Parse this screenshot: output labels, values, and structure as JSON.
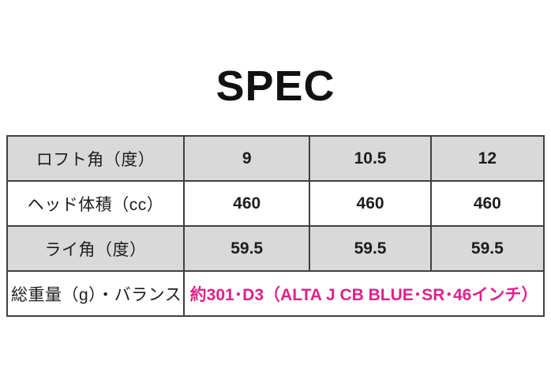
{
  "page": {
    "title": "SPEC"
  },
  "colors": {
    "accent_pink": "#e0218a",
    "row_gray": "#d9d9d9",
    "border": "#404040",
    "text": "#1d1d1d"
  },
  "table": {
    "columns": [
      "label",
      "value1",
      "value2",
      "value3"
    ],
    "rows": [
      {
        "label": "ロフト角（度）",
        "values": [
          "9",
          "10.5",
          "12"
        ],
        "shaded": true
      },
      {
        "label": "ヘッド体積（cc）",
        "values": [
          "460",
          "460",
          "460"
        ],
        "shaded": false
      },
      {
        "label": "ライ角（度）",
        "values": [
          "59.5",
          "59.5",
          "59.5"
        ],
        "shaded": true
      },
      {
        "label": "総重量（g）・バランス",
        "span_value": "約301･D3（ALTA J CB BLUE･SR･46インチ）",
        "shaded": false,
        "highlighted": true
      }
    ]
  }
}
